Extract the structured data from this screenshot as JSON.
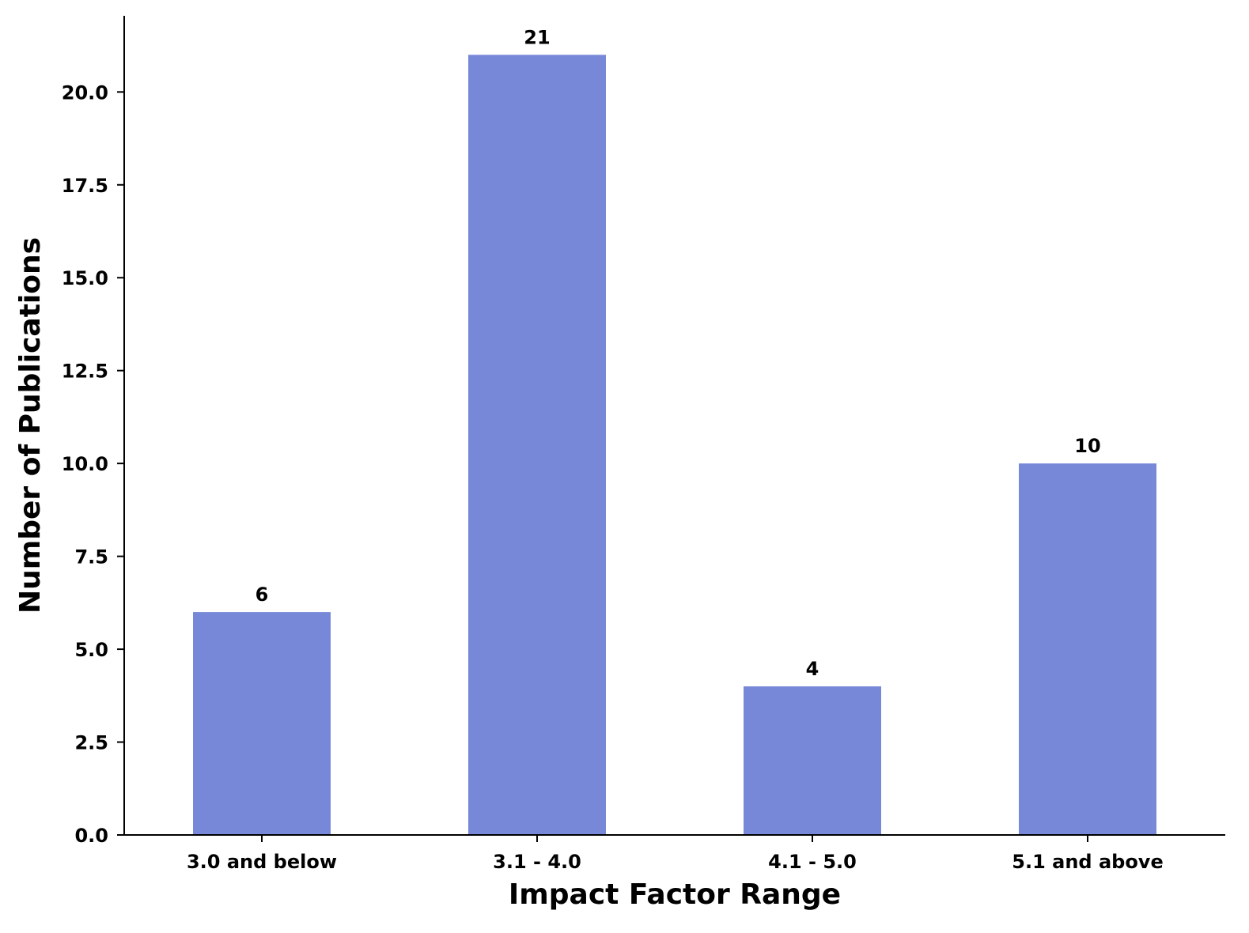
{
  "chart_data": {
    "type": "bar",
    "categories": [
      "3.0 and below",
      "3.1 - 4.0",
      "4.1 - 5.0",
      "5.1 and above"
    ],
    "values": [
      6,
      21,
      4,
      10
    ],
    "data_labels": [
      "6",
      "21",
      "4",
      "10"
    ],
    "xlabel": "Impact Factor Range",
    "ylabel": "Number of Publications",
    "ylim": [
      0,
      22.05
    ],
    "yticks": [
      0,
      2.5,
      5,
      7.5,
      10,
      12.5,
      15,
      17.5,
      20
    ],
    "ytick_labels": [
      "0.0",
      "2.5",
      "5.0",
      "7.5",
      "10.0",
      "12.5",
      "15.0",
      "17.5",
      "20.0"
    ],
    "bar_color": "#7788d8",
    "grid": false,
    "legend": false
  }
}
